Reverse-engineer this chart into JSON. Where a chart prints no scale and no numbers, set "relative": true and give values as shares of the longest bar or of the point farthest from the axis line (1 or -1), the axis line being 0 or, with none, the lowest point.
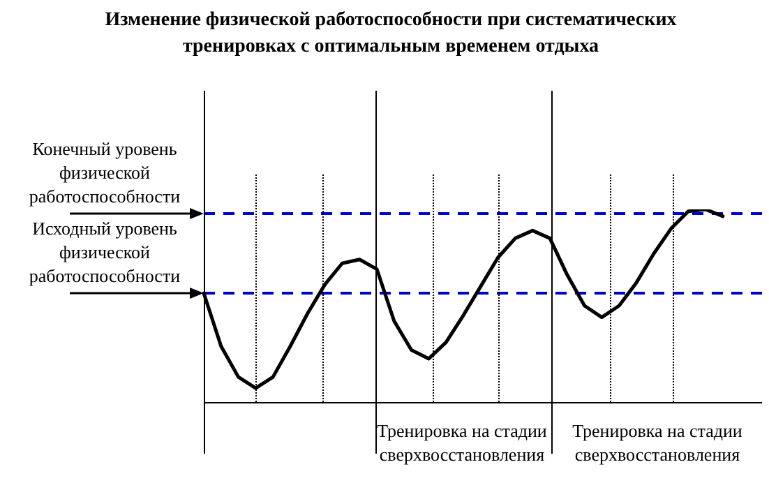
{
  "chart_data": {
    "type": "line",
    "title": "Изменение физической работоспособности при систематических тренировках с оптимальным временем отдыха",
    "relative": true,
    "grid": "x",
    "marker": "none",
    "line_style": "solid",
    "color": "#000000",
    "categories": [
      null,
      null,
      null,
      null,
      null,
      null,
      null,
      null,
      null,
      null,
      null,
      null,
      null,
      null,
      null,
      null,
      null,
      null,
      null,
      null,
      null,
      null,
      null,
      null,
      null,
      null,
      null,
      null,
      null,
      null,
      null
    ],
    "values": [
      0.565,
      0.29,
      0.13,
      0.072,
      0.13,
      0.29,
      0.46,
      0.61,
      0.72,
      0.74,
      0.69,
      0.42,
      0.27,
      0.225,
      0.31,
      0.45,
      0.6,
      0.75,
      0.85,
      0.89,
      0.85,
      0.66,
      0.5,
      0.44,
      0.5,
      0.62,
      0.77,
      0.9,
      0.99,
      1,
      0.964
    ],
    "ref_lines": [
      {
        "axis": "y",
        "value": 0.978,
        "label": "Конечный уровень физической работоспособности",
        "color": "#0000cc",
        "line_style": "dashed"
      },
      {
        "axis": "y",
        "value": 0.565,
        "label": "Исходный уровень физической работоспособности",
        "color": "#0000cc",
        "line_style": "dashed"
      }
    ],
    "annotations": [
      "Тренировка на стадии сверхвосстановления",
      "Тренировка на стадии сверхвосстановления"
    ]
  }
}
